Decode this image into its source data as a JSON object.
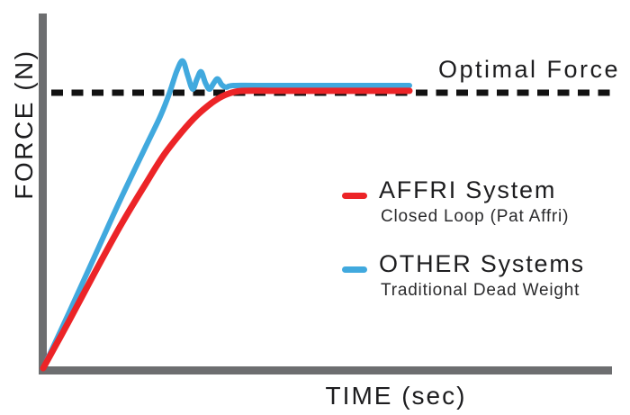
{
  "colors": {
    "affri_red": "#EC2427",
    "other_blue": "#41A9DE",
    "axis_gray": "#6D6E70",
    "dash_black": "#121212",
    "text_dark": "#1D1D1F"
  },
  "axes": {
    "y_label": "FORCE (N)",
    "x_label": "TIME (sec)"
  },
  "optimal": {
    "label": "Optimal Force"
  },
  "legend": {
    "entries": [
      {
        "label": "AFFRI System",
        "sublabel": "Closed Loop (Pat Affri)",
        "color": "#EC2427"
      },
      {
        "label": "OTHER Systems",
        "sublabel": "Traditional Dead Weight",
        "color": "#41A9DE"
      }
    ]
  },
  "chart_data": {
    "type": "line",
    "title": "",
    "xlabel": "TIME (sec)",
    "ylabel": "FORCE (N)",
    "xlim": [
      0,
      10
    ],
    "ylim": [
      0,
      129
    ],
    "grid": false,
    "tick_labels": "none shown",
    "legend_position": "right-middle",
    "optimal_force": 100,
    "annotations": [
      {
        "text": "Optimal Force",
        "y": 100,
        "style": "dashed-horizontal-line"
      }
    ],
    "series": [
      {
        "name": "AFFRI System",
        "subtitle": "Closed Loop (Pat Affri)",
        "color": "#EC2427",
        "behavior": "smooth asymptotic approach to optimal force, no overshoot",
        "points": [
          [
            0,
            0
          ],
          [
            0.7,
            17
          ],
          [
            1.4,
            34.5
          ],
          [
            2.1,
            51.5
          ],
          [
            2.8,
            67
          ],
          [
            3.3,
            77.5
          ],
          [
            3.8,
            86
          ],
          [
            4.2,
            91.8
          ],
          [
            4.6,
            96.3
          ],
          [
            4.9,
            98.8
          ],
          [
            5.2,
            100.2
          ],
          [
            5.5,
            100.7
          ],
          [
            6.5,
            100.7
          ],
          [
            10,
            100.7
          ]
        ]
      },
      {
        "name": "OTHER Systems",
        "subtitle": "Traditional Dead Weight",
        "color": "#41A9DE",
        "behavior": "fast rise with damped overshoot oscillation settling at optimal force",
        "points": [
          [
            0,
            0
          ],
          [
            0.7,
            20
          ],
          [
            1.4,
            40.5
          ],
          [
            2.1,
            61
          ],
          [
            2.8,
            80.5
          ],
          [
            3.2,
            91.5
          ],
          [
            3.45,
            100
          ],
          [
            3.65,
            108
          ],
          [
            3.81,
            111.5
          ],
          [
            3.95,
            106
          ],
          [
            4.08,
            101.3
          ],
          [
            4.2,
            105
          ],
          [
            4.31,
            107.6
          ],
          [
            4.43,
            103.5
          ],
          [
            4.54,
            101.3
          ],
          [
            4.65,
            103.4
          ],
          [
            4.76,
            105
          ],
          [
            4.88,
            102.8
          ],
          [
            5.0,
            102.0
          ],
          [
            5.2,
            102.6
          ],
          [
            6.2,
            102.6
          ],
          [
            10,
            102.6
          ]
        ]
      }
    ]
  }
}
